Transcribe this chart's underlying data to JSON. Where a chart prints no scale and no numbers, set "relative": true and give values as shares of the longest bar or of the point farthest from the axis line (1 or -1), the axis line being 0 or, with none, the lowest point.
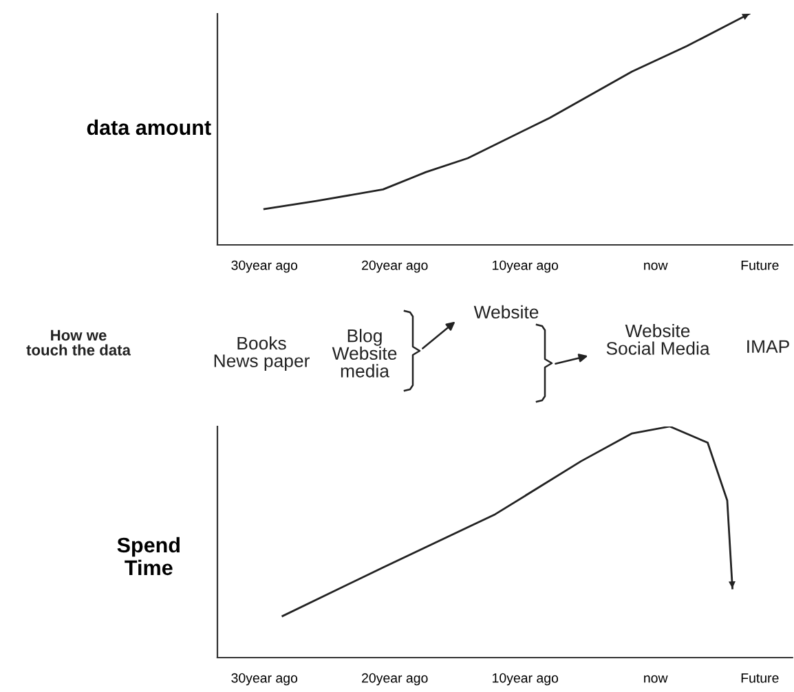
{
  "chart_data": [
    {
      "type": "line",
      "relative": true,
      "ylabel": "data amount",
      "tick_labels": "x",
      "grid": false,
      "marker": "none",
      "line_style": "solid",
      "xlim": [
        33.6,
        -10.5
      ],
      "xticks": [
        {
          "value": 30,
          "label": "30year ago"
        },
        {
          "value": 20,
          "label": "20year ago"
        },
        {
          "value": 10,
          "label": "10year ago"
        },
        {
          "value": 0,
          "label": "now"
        },
        {
          "value": -8,
          "label": "Future"
        }
      ],
      "series": [
        {
          "color": "#222222",
          "x": [
            30,
            26,
            20.9,
            17.6,
            14.4,
            8.1,
            1.8,
            -2.4,
            -7.2
          ],
          "values": [
            0.155,
            0.19,
            0.24,
            0.315,
            0.375,
            0.55,
            0.75,
            0.86,
            1.0
          ]
        }
      ],
      "annotations": [
        "How we\ntouch the data",
        "Books\nNews paper",
        "Blog\nWebsite\nmedia",
        "Website",
        "Website\nSocial Media",
        "IMAP"
      ]
    },
    {
      "type": "line",
      "relative": true,
      "ylabel": "Spend\nTime",
      "tick_labels": "x",
      "grid": false,
      "marker": "none",
      "line_style": "solid",
      "xlim": [
        33.6,
        -10.5
      ],
      "xticks": [
        {
          "value": 30,
          "label": "30year ago"
        },
        {
          "value": 20,
          "label": "20year ago"
        },
        {
          "value": 10,
          "label": "10year ago"
        },
        {
          "value": 0,
          "label": "now"
        },
        {
          "value": -8,
          "label": "Future"
        }
      ],
      "series": [
        {
          "color": "#222222",
          "x": [
            28.6,
            20.9,
            12.3,
            5.7,
            1.8,
            -1.1,
            -4.0,
            -5.5,
            -5.9
          ],
          "values": [
            0.18,
            0.39,
            0.62,
            0.85,
            0.97,
            1.0,
            0.93,
            0.68,
            0.3
          ]
        }
      ]
    }
  ]
}
